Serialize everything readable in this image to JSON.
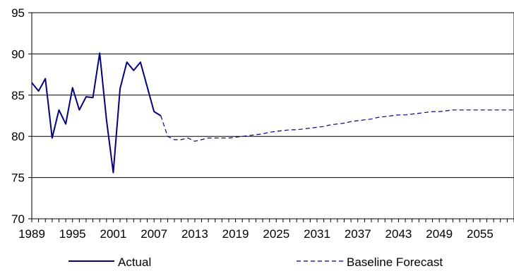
{
  "chart_data": {
    "type": "line",
    "title": "",
    "xlabel": "",
    "ylabel": "",
    "xlim": [
      1989,
      2060
    ],
    "ylim": [
      70,
      95
    ],
    "grid": true,
    "legend_position": "bottom",
    "x_tick_labels": [
      "1989",
      "1995",
      "2001",
      "2007",
      "2013",
      "2019",
      "2025",
      "2031",
      "2037",
      "2043",
      "2049",
      "2055"
    ],
    "y_tick_labels": [
      "70",
      "75",
      "80",
      "85",
      "90",
      "95"
    ],
    "series": [
      {
        "name": "Actual",
        "style": "solid",
        "color": "#000080",
        "x": [
          1989,
          1990,
          1991,
          1992,
          1993,
          1994,
          1995,
          1996,
          1997,
          1998,
          1999,
          2000,
          2001,
          2002,
          2003,
          2004,
          2005,
          2006,
          2007,
          2008
        ],
        "y": [
          86.5,
          85.5,
          87.0,
          79.8,
          83.2,
          81.5,
          85.9,
          83.2,
          84.8,
          84.7,
          90.1,
          82.0,
          75.6,
          85.8,
          89.0,
          88.0,
          89.0,
          86.0,
          83.0,
          82.5
        ]
      },
      {
        "name": "Baseline Forecast",
        "style": "dashed",
        "color": "#000080",
        "x": [
          2008,
          2009,
          2010,
          2011,
          2012,
          2013,
          2014,
          2015,
          2016,
          2017,
          2018,
          2019,
          2020,
          2021,
          2022,
          2023,
          2024,
          2025,
          2026,
          2027,
          2028,
          2029,
          2030,
          2031,
          2032,
          2033,
          2034,
          2035,
          2036,
          2037,
          2038,
          2039,
          2040,
          2041,
          2042,
          2043,
          2044,
          2045,
          2046,
          2047,
          2048,
          2049,
          2050,
          2051,
          2052,
          2053,
          2054,
          2055,
          2056,
          2057,
          2058,
          2059,
          2060
        ],
        "y": [
          82.5,
          80.0,
          79.6,
          79.6,
          79.8,
          79.4,
          79.6,
          79.8,
          79.8,
          79.8,
          79.8,
          79.9,
          80.0,
          80.1,
          80.2,
          80.3,
          80.5,
          80.6,
          80.7,
          80.8,
          80.8,
          80.9,
          81.0,
          81.1,
          81.2,
          81.4,
          81.5,
          81.6,
          81.8,
          81.9,
          82.0,
          82.1,
          82.3,
          82.4,
          82.5,
          82.6,
          82.6,
          82.7,
          82.8,
          82.9,
          83.0,
          83.0,
          83.1,
          83.2,
          83.2,
          83.2,
          83.2,
          83.2,
          83.2,
          83.2,
          83.2,
          83.2,
          83.2
        ]
      }
    ]
  }
}
